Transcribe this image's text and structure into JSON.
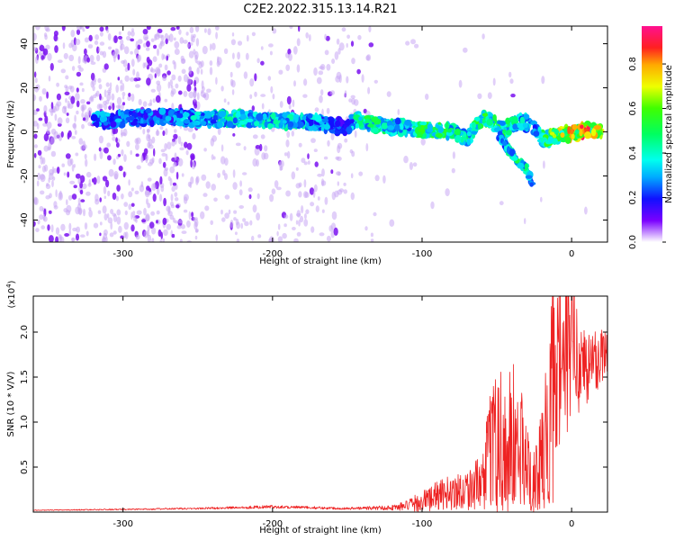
{
  "title": "C2E2.2022.315.13.14.R21",
  "chart_data": [
    {
      "type": "heatmap",
      "xlabel": "Height of straight line (km)",
      "ylabel": "Frequency (Hz)",
      "xlim": [
        -360,
        24
      ],
      "ylim": [
        -50,
        48
      ],
      "xticks": [
        -300,
        -200,
        -100,
        0
      ],
      "yticks": [
        -40,
        -20,
        0,
        20,
        40
      ],
      "colorbar": {
        "label": "Normalized spectral amplitude",
        "range": [
          0,
          0.97
        ],
        "ticks": [
          0.0,
          0.2,
          0.4,
          0.6,
          0.8
        ],
        "tick_labels": [
          "0.0",
          "0.2",
          "0.4",
          "0.6",
          "0.8"
        ],
        "colormap": "white-violet-blue-cyan-green-yellow-red-magenta"
      },
      "main_ridge": {
        "x": [
          -320,
          -300,
          -270,
          -250,
          -220,
          -200,
          -180,
          -160,
          -150,
          -145,
          -140,
          -130,
          -120,
          -110,
          -100,
          -90,
          -80,
          -70,
          -60,
          -55,
          -50,
          -45,
          -40,
          -35,
          -30,
          -25,
          -20,
          -15,
          -10,
          -5,
          0,
          10,
          20
        ],
        "y": [
          5,
          6,
          7,
          6,
          6,
          5,
          5,
          3,
          2,
          6,
          5,
          3,
          2,
          2,
          1,
          1,
          0,
          -3,
          6,
          5,
          3,
          1,
          3,
          5,
          4,
          1,
          -3,
          -3,
          -2,
          -1,
          -1,
          1,
          1
        ],
        "amplitude": [
          0.35,
          0.3,
          0.3,
          0.4,
          0.45,
          0.45,
          0.4,
          0.3,
          0.2,
          0.45,
          0.5,
          0.5,
          0.45,
          0.4,
          0.55,
          0.55,
          0.5,
          0.45,
          0.6,
          0.55,
          0.5,
          0.55,
          0.45,
          0.45,
          0.4,
          0.35,
          0.5,
          0.6,
          0.7,
          0.75,
          0.85,
          0.9,
          0.7
        ]
      },
      "secondary_branch": {
        "x": [
          -48,
          -42,
          -36,
          -30,
          -26
        ],
        "y": [
          -2,
          -8,
          -13,
          -17,
          -24
        ],
        "amplitude": [
          0.3,
          0.45,
          0.5,
          0.45,
          0.25
        ]
      }
    },
    {
      "type": "line",
      "xlabel": "Height of straight line (km)",
      "ylabel": "SNR (10 * V/V)",
      "y_multiplier": "(x10⁴)",
      "y_multiplier_exponent": "4",
      "xlim": [
        -360,
        24
      ],
      "ylim": [
        0,
        24000
      ],
      "xticks": [
        -300,
        -200,
        -100,
        0
      ],
      "yticks": [
        5000,
        10000,
        15000,
        20000
      ],
      "ytick_labels": [
        "0.5",
        "1.0",
        "1.5",
        "2.0"
      ],
      "color": "#ee2222",
      "series": [
        {
          "x": [
            -360,
            -300,
            -250,
            -200,
            -150,
            -120,
            -110,
            -100,
            -90,
            -80,
            -70,
            -60,
            -55,
            -50,
            -45,
            -40,
            -35,
            -30,
            -25,
            -20,
            -15,
            -10,
            -5,
            0,
            5,
            10,
            15,
            20,
            24
          ],
          "y": [
            200,
            300,
            400,
            600,
            400,
            500,
            700,
            1200,
            1800,
            2200,
            2600,
            3000,
            5500,
            8500,
            6500,
            7500,
            6500,
            5000,
            3000,
            5000,
            10000,
            15000,
            16500,
            19000,
            17000,
            16000,
            16500,
            17500,
            18500
          ],
          "noise_amplitude": [
            0.2,
            0.25,
            0.25,
            0.3,
            0.3,
            0.6,
            0.9,
            1.0,
            0.9,
            0.9,
            0.9,
            1.1,
            1.3,
            1.4,
            1.3,
            1.3,
            1.3,
            1.2,
            1.2,
            1.3,
            1.2,
            0.8,
            0.6,
            0.45,
            0.35,
            0.3,
            0.25,
            0.2,
            0.2
          ]
        }
      ]
    }
  ]
}
